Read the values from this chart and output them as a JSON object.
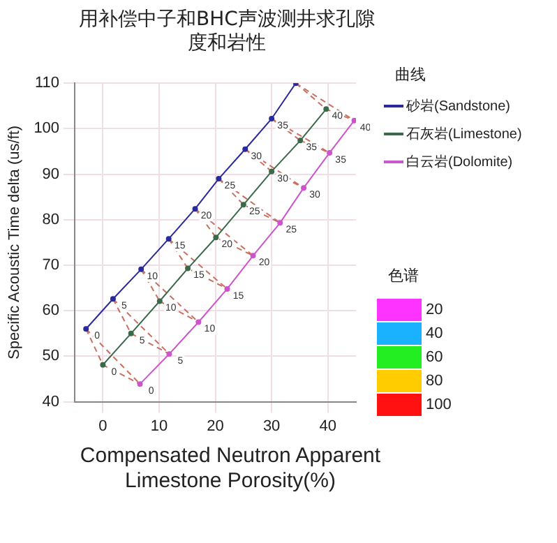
{
  "chart_data": {
    "type": "line",
    "title": "用补偿中子和BHC声波测井求孔隙度和岩性",
    "xlabel": "Compensated Neutron Apparent Limestone Porosity(%)",
    "ylabel": "Specific Acoustic Time delta (us/ft)",
    "legend_title": "曲线",
    "legend": "right",
    "grid": true,
    "marker": "circle",
    "xlim": [
      -5,
      45
    ],
    "ylim": [
      40,
      110
    ],
    "xticks": [
      0,
      10,
      20,
      30,
      40
    ],
    "yticks": [
      40,
      50,
      60,
      70,
      80,
      90,
      100,
      110
    ],
    "series": [
      {
        "name": "砂岩(Sandstone)",
        "color": "#2a2a9a",
        "x": [
          -3,
          1.8,
          6.8,
          11.7,
          16.4,
          20.6,
          25.3,
          30,
          34.3
        ],
        "values": [
          56,
          62.6,
          69.1,
          75.8,
          82.4,
          89,
          95.5,
          102.2,
          110
        ]
      },
      {
        "name": "石灰岩(Limestone)",
        "color": "#3a6a4a",
        "x": [
          0,
          5,
          10.1,
          15.1,
          20.1,
          25,
          30,
          35.1,
          39.7
        ],
        "values": [
          48.1,
          55,
          62.1,
          69.3,
          76.1,
          83.3,
          90.6,
          97.4,
          104.3
        ]
      },
      {
        "name": "白云岩(Dolomite)",
        "color": "#cc55cc",
        "x": [
          6.6,
          11.8,
          17,
          22.1,
          26.7,
          31.5,
          35.7,
          40.3,
          44.7
        ],
        "values": [
          43.9,
          50.5,
          57.5,
          64.8,
          72.1,
          79.3,
          87,
          94.7,
          101.8
        ]
      },
      {
        "color": "#c87060",
        "line_style": "dashed",
        "marker": "none",
        "x": [
          -3,
          0,
          6.6
        ],
        "values": [
          56,
          48.1,
          43.9
        ]
      },
      {
        "color": "#c87060",
        "line_style": "dashed",
        "marker": "none",
        "x": [
          1.8,
          5,
          11.8
        ],
        "values": [
          62.6,
          55,
          50.5
        ]
      },
      {
        "color": "#c87060",
        "line_style": "dashed",
        "marker": "none",
        "x": [
          6.8,
          10.1,
          17
        ],
        "values": [
          69.1,
          62.1,
          57.5
        ]
      },
      {
        "color": "#c87060",
        "line_style": "dashed",
        "marker": "none",
        "x": [
          11.7,
          15.1,
          22.1
        ],
        "values": [
          75.8,
          69.3,
          64.8
        ]
      },
      {
        "color": "#c87060",
        "line_style": "dashed",
        "marker": "none",
        "x": [
          16.4,
          20.1,
          26.7
        ],
        "values": [
          82.4,
          76.1,
          72.1
        ]
      },
      {
        "color": "#c87060",
        "line_style": "dashed",
        "marker": "none",
        "x": [
          20.6,
          25,
          31.5
        ],
        "values": [
          89,
          83.3,
          79.3
        ]
      },
      {
        "color": "#c87060",
        "line_style": "dashed",
        "marker": "none",
        "x": [
          25.3,
          30,
          35.7
        ],
        "values": [
          95.5,
          90.6,
          87
        ]
      },
      {
        "color": "#c87060",
        "line_style": "dashed",
        "marker": "none",
        "x": [
          30,
          35.1,
          40.3
        ],
        "values": [
          102.2,
          97.4,
          94.7
        ]
      },
      {
        "color": "#c87060",
        "line_style": "dashed",
        "marker": "none",
        "x": [
          34.3,
          39.7,
          44.7
        ],
        "values": [
          110,
          104.3,
          101.8
        ]
      },
      {
        "color": "#c87060",
        "line_style": "dashed",
        "marker": "none",
        "x": [
          -3,
          6.6
        ],
        "values": [
          56,
          43.9
        ]
      },
      {
        "color": "#c87060",
        "line_style": "dashed",
        "marker": "none",
        "x": [
          1.8,
          11.8
        ],
        "values": [
          62.6,
          50.5
        ]
      },
      {
        "color": "#c87060",
        "line_style": "dashed",
        "marker": "none",
        "x": [
          6.8,
          17
        ],
        "values": [
          69.1,
          57.5
        ]
      },
      {
        "color": "#c87060",
        "line_style": "dashed",
        "marker": "none",
        "x": [
          11.7,
          22.1
        ],
        "values": [
          75.8,
          64.8
        ]
      },
      {
        "color": "#c87060",
        "line_style": "dashed",
        "marker": "none",
        "x": [
          16.4,
          26.7
        ],
        "values": [
          82.4,
          72.1
        ]
      },
      {
        "color": "#c87060",
        "line_style": "dashed",
        "marker": "none",
        "x": [
          20.6,
          31.5
        ],
        "values": [
          89,
          79.3
        ]
      },
      {
        "color": "#c87060",
        "line_style": "dashed",
        "marker": "none",
        "x": [
          25.3,
          35.7
        ],
        "values": [
          95.5,
          87
        ]
      },
      {
        "color": "#c87060",
        "line_style": "dashed",
        "marker": "none",
        "x": [
          30,
          40.3
        ],
        "values": [
          102.2,
          94.7
        ]
      },
      {
        "color": "#c87060",
        "line_style": "dashed",
        "marker": "none",
        "x": [
          34.3,
          44.7
        ],
        "values": [
          110,
          101.8
        ]
      }
    ],
    "annotations": [
      {
        "text": "0",
        "x": -3,
        "y": 56
      },
      {
        "text": "5",
        "x": 1.8,
        "y": 62.6
      },
      {
        "text": "10",
        "x": 6.8,
        "y": 69.1
      },
      {
        "text": "15",
        "x": 11.7,
        "y": 75.8
      },
      {
        "text": "20",
        "x": 16.4,
        "y": 82.4
      },
      {
        "text": "25",
        "x": 20.6,
        "y": 89
      },
      {
        "text": "30",
        "x": 25.3,
        "y": 95.5
      },
      {
        "text": "35",
        "x": 30,
        "y": 102.2
      },
      {
        "text": "0",
        "x": 0,
        "y": 48.1
      },
      {
        "text": "5",
        "x": 5,
        "y": 55
      },
      {
        "text": "10",
        "x": 10.1,
        "y": 62.1
      },
      {
        "text": "15",
        "x": 15.1,
        "y": 69.3
      },
      {
        "text": "20",
        "x": 20.1,
        "y": 76.1
      },
      {
        "text": "25",
        "x": 25,
        "y": 83.3
      },
      {
        "text": "30",
        "x": 30,
        "y": 90.6
      },
      {
        "text": "35",
        "x": 35.1,
        "y": 97.4
      },
      {
        "text": "40",
        "x": 39.7,
        "y": 104.3
      },
      {
        "text": "0",
        "x": 6.6,
        "y": 43.9
      },
      {
        "text": "5",
        "x": 11.8,
        "y": 50.5
      },
      {
        "text": "10",
        "x": 17,
        "y": 57.5
      },
      {
        "text": "15",
        "x": 22.1,
        "y": 64.8
      },
      {
        "text": "20",
        "x": 26.7,
        "y": 72.1
      },
      {
        "text": "25",
        "x": 31.5,
        "y": 79.3
      },
      {
        "text": "30",
        "x": 35.7,
        "y": 87
      },
      {
        "text": "35",
        "x": 40.3,
        "y": 94.7
      },
      {
        "text": "40",
        "x": 44.7,
        "y": 101.8
      },
      "色谱",
      "20",
      "40",
      "60",
      "80",
      "100"
    ]
  }
}
